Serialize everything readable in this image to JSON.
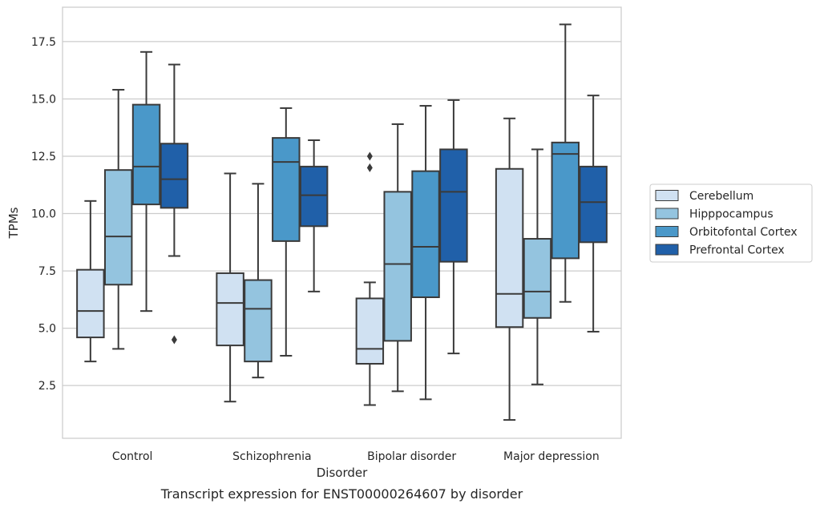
{
  "chart_data": {
    "type": "box",
    "caption": "Transcript expression for ENST00000264607 by disorder",
    "xlabel": "Disorder",
    "ylabel": "TPMs",
    "ylim": [
      0.2,
      19.0
    ],
    "yticks": [
      2.5,
      5.0,
      7.5,
      10.0,
      12.5,
      15.0,
      17.5
    ],
    "ytick_labels": [
      "2.5",
      "5.0",
      "7.5",
      "10.0",
      "12.5",
      "15.0",
      "17.5"
    ],
    "grid": "horizontal",
    "legend_position": "right",
    "categories": [
      "Control",
      "Schizophrenia",
      "Bipolar disorder",
      "Major depression"
    ],
    "series": [
      {
        "name": "Cerebellum",
        "color": "#d0e1f2",
        "boxes": [
          {
            "whisker_low": 3.55,
            "q1": 4.6,
            "median": 5.75,
            "q3": 7.55,
            "whisker_high": 10.55,
            "outliers": []
          },
          {
            "whisker_low": 1.8,
            "q1": 4.25,
            "median": 6.1,
            "q3": 7.4,
            "whisker_high": 11.75,
            "outliers": []
          },
          {
            "whisker_low": 1.65,
            "q1": 3.45,
            "median": 4.1,
            "q3": 6.3,
            "whisker_high": 7.0,
            "outliers": [
              12.0,
              12.5
            ]
          },
          {
            "whisker_low": 1.0,
            "q1": 5.05,
            "median": 6.5,
            "q3": 11.95,
            "whisker_high": 14.15,
            "outliers": []
          }
        ]
      },
      {
        "name": "Hipppocampus",
        "color": "#94c4df",
        "boxes": [
          {
            "whisker_low": 4.1,
            "q1": 6.9,
            "median": 9.0,
            "q3": 11.9,
            "whisker_high": 15.4,
            "outliers": []
          },
          {
            "whisker_low": 2.85,
            "q1": 3.55,
            "median": 5.85,
            "q3": 7.1,
            "whisker_high": 11.3,
            "outliers": []
          },
          {
            "whisker_low": 2.25,
            "q1": 4.45,
            "median": 7.8,
            "q3": 10.95,
            "whisker_high": 13.9,
            "outliers": []
          },
          {
            "whisker_low": 2.55,
            "q1": 5.45,
            "median": 6.6,
            "q3": 8.9,
            "whisker_high": 12.8,
            "outliers": []
          }
        ]
      },
      {
        "name": "Orbitofontal Cortex",
        "color": "#4a98c9",
        "boxes": [
          {
            "whisker_low": 5.75,
            "q1": 10.4,
            "median": 12.05,
            "q3": 14.75,
            "whisker_high": 17.05,
            "outliers": []
          },
          {
            "whisker_low": 3.8,
            "q1": 8.8,
            "median": 12.25,
            "q3": 13.3,
            "whisker_high": 14.6,
            "outliers": []
          },
          {
            "whisker_low": 1.9,
            "q1": 6.35,
            "median": 8.55,
            "q3": 11.85,
            "whisker_high": 14.7,
            "outliers": []
          },
          {
            "whisker_low": 6.15,
            "q1": 8.05,
            "median": 12.6,
            "q3": 13.1,
            "whisker_high": 18.25,
            "outliers": []
          }
        ]
      },
      {
        "name": "Prefrontal Cortex",
        "color": "#2060a9",
        "boxes": [
          {
            "whisker_low": 8.15,
            "q1": 10.25,
            "median": 11.5,
            "q3": 13.05,
            "whisker_high": 16.5,
            "outliers": [
              4.5
            ]
          },
          {
            "whisker_low": 6.6,
            "q1": 9.45,
            "median": 10.8,
            "q3": 12.05,
            "whisker_high": 13.2,
            "outliers": []
          },
          {
            "whisker_low": 3.9,
            "q1": 7.9,
            "median": 10.95,
            "q3": 12.8,
            "whisker_high": 14.95,
            "outliers": []
          },
          {
            "whisker_low": 4.85,
            "q1": 8.75,
            "median": 10.5,
            "q3": 12.05,
            "whisker_high": 15.15,
            "outliers": []
          }
        ]
      }
    ]
  }
}
